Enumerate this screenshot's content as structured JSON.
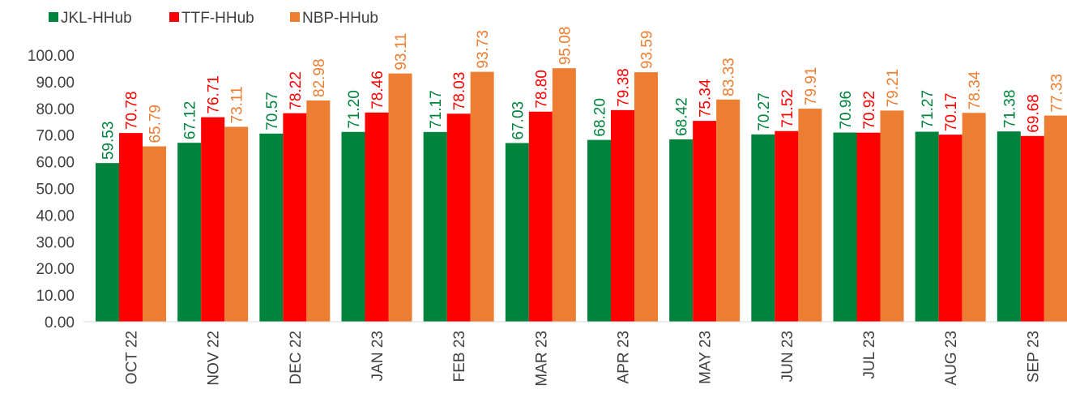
{
  "chart_data": {
    "type": "bar",
    "title": "",
    "xlabel": "",
    "ylabel": "",
    "ylim": [
      0,
      100
    ],
    "yticks": [
      "0.00",
      "10.00",
      "20.00",
      "30.00",
      "40.00",
      "50.00",
      "60.00",
      "70.00",
      "80.00",
      "90.00",
      "100.00"
    ],
    "categories": [
      "OCT 22",
      "NOV 22",
      "DEC 22",
      "JAN 23",
      "FEB 23",
      "MAR 23",
      "APR 23",
      "MAY 23",
      "JUN 23",
      "JUL 23",
      "AUG 23",
      "SEP 23"
    ],
    "legend_position": "top-left",
    "grid": false,
    "series": [
      {
        "name": "JKL-HHub",
        "color": "#00843D",
        "values": [
          59.53,
          67.12,
          70.57,
          71.2,
          71.17,
          67.03,
          68.2,
          68.42,
          70.27,
          70.96,
          71.27,
          71.38
        ],
        "labels": [
          "59.53",
          "67.12",
          "70.57",
          "71.20",
          "71.17",
          "67.03",
          "68.20",
          "68.42",
          "70.27",
          "70.96",
          "71.27",
          "71.38"
        ]
      },
      {
        "name": "TTF-HHub",
        "color": "#FF0000",
        "values": [
          70.78,
          76.71,
          78.22,
          78.46,
          78.03,
          78.8,
          79.38,
          75.34,
          71.52,
          70.92,
          70.17,
          69.68
        ],
        "labels": [
          "70.78",
          "76.71",
          "78.22",
          "78.46",
          "78.03",
          "78.80",
          "79.38",
          "75.34",
          "71.52",
          "70.92",
          "70.17",
          "69.68"
        ]
      },
      {
        "name": "NBP-HHub",
        "color": "#ED7D31",
        "values": [
          65.79,
          73.11,
          82.98,
          93.11,
          93.73,
          95.08,
          93.59,
          83.33,
          79.91,
          79.21,
          78.34,
          77.33
        ],
        "labels": [
          "65.79",
          "73.11",
          "82.98",
          "93.11",
          "93.73",
          "95.08",
          "93.59",
          "83.33",
          "79.91",
          "79.21",
          "78.34",
          "77.33"
        ]
      }
    ]
  }
}
